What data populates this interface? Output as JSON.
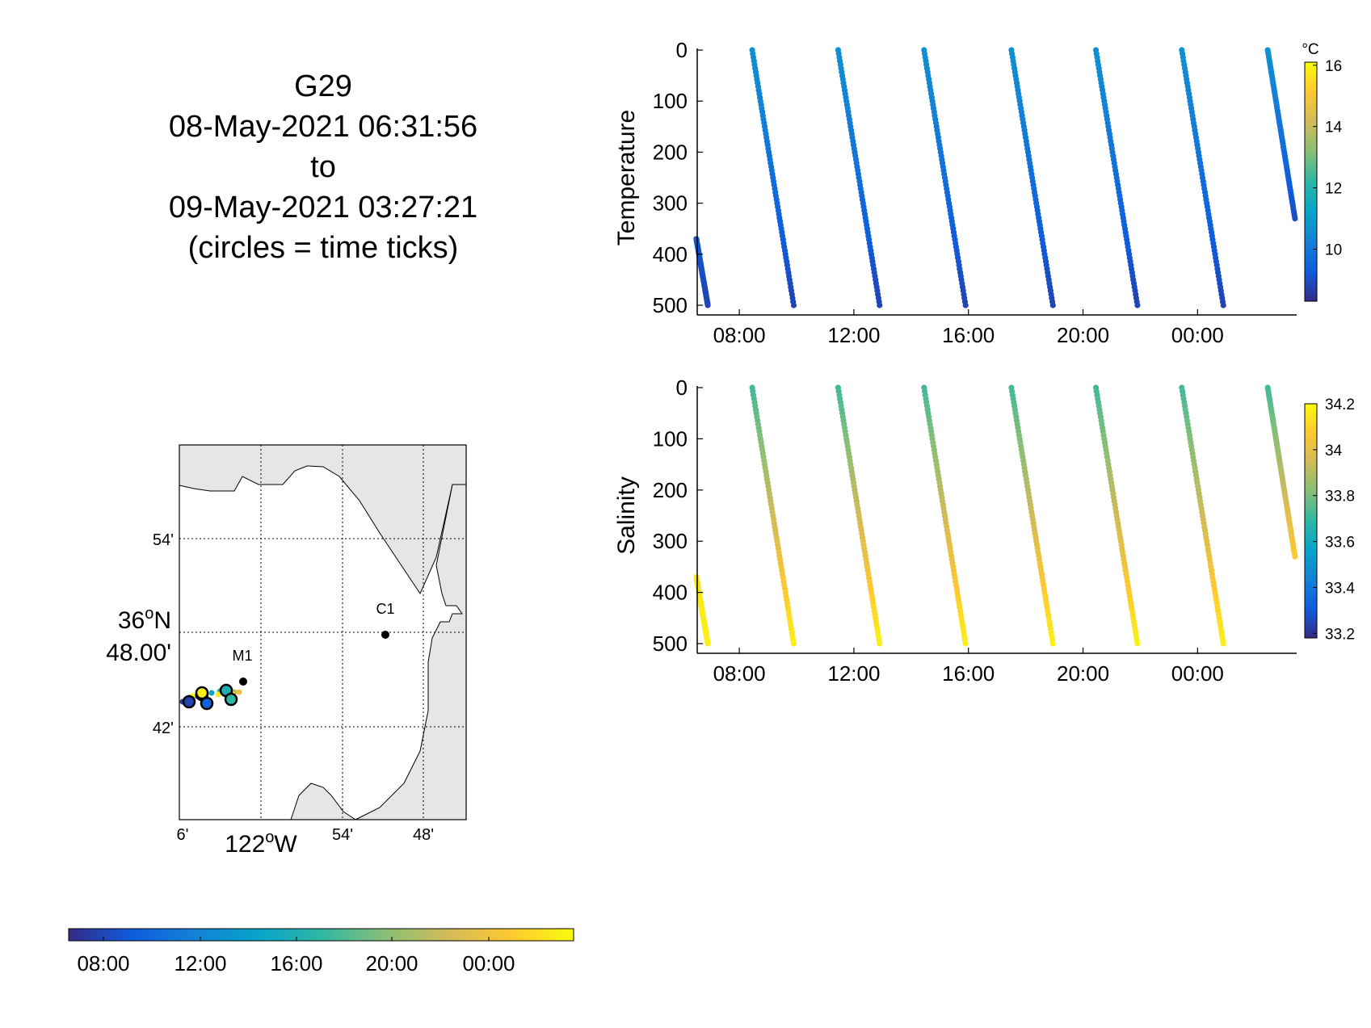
{
  "title": {
    "line1": "G29",
    "line2": "08-May-2021 06:31:56",
    "line3": "to",
    "line4": "09-May-2021 03:27:21",
    "line5": "(circles = time ticks)"
  },
  "time_axis_ticks": [
    "08:00",
    "12:00",
    "16:00",
    "20:00",
    "00:00"
  ],
  "colors": {
    "parula": [
      "#352a87",
      "#0f5cdd",
      "#1481d6",
      "#06a4ca",
      "#2eb7a4",
      "#87bf77",
      "#d1bb59",
      "#fec832",
      "#f9fb0e"
    ],
    "land": "#e6e6e6",
    "coast": "#000000"
  },
  "chart_data": [
    {
      "id": "temperature",
      "type": "scatter",
      "ylabel": "Temperature",
      "ylim": [
        0,
        500
      ],
      "y_reversed": true,
      "yticks": [
        0,
        100,
        200,
        300,
        400,
        500
      ],
      "x_range_hours": [
        6.53,
        27.46
      ],
      "x_tick_hours": [
        8,
        12,
        16,
        20,
        24
      ],
      "x_tick_labels": [
        "08:00",
        "12:00",
        "16:00",
        "20:00",
        "00:00"
      ],
      "colorbar": {
        "unit": "°C",
        "ticks": [
          "16",
          "14",
          "12",
          "10"
        ],
        "tick_values": [
          16,
          14,
          12,
          10
        ],
        "clim": [
          8.3,
          16.1
        ]
      },
      "segments": [
        {
          "t0": 6.5,
          "t1": 6.9,
          "d0": 370,
          "d1": 500,
          "v0": 9.2,
          "v1": 8.8
        },
        {
          "t0": 8.45,
          "t1": 9.9,
          "d0": 0,
          "d1": 500,
          "v0": 10.7,
          "v1": 8.8
        },
        {
          "t0": 11.45,
          "t1": 12.9,
          "d0": 0,
          "d1": 500,
          "v0": 10.7,
          "v1": 8.8
        },
        {
          "t0": 14.45,
          "t1": 15.9,
          "d0": 0,
          "d1": 500,
          "v0": 10.7,
          "v1": 8.8
        },
        {
          "t0": 17.5,
          "t1": 18.95,
          "d0": 0,
          "d1": 500,
          "v0": 10.7,
          "v1": 8.8
        },
        {
          "t0": 20.45,
          "t1": 21.9,
          "d0": 0,
          "d1": 500,
          "v0": 10.7,
          "v1": 8.8
        },
        {
          "t0": 23.45,
          "t1": 24.9,
          "d0": 0,
          "d1": 500,
          "v0": 10.7,
          "v1": 8.8
        },
        {
          "t0": 26.45,
          "t1": 27.4,
          "d0": 0,
          "d1": 330,
          "v0": 10.7,
          "v1": 9.0
        }
      ]
    },
    {
      "id": "salinity",
      "type": "scatter",
      "ylabel": "Salinity",
      "ylim": [
        0,
        500
      ],
      "y_reversed": true,
      "yticks": [
        0,
        100,
        200,
        300,
        400,
        500
      ],
      "x_range_hours": [
        6.53,
        27.46
      ],
      "x_tick_hours": [
        8,
        12,
        16,
        20,
        24
      ],
      "x_tick_labels": [
        "08:00",
        "12:00",
        "16:00",
        "20:00",
        "00:00"
      ],
      "colorbar": {
        "unit": "",
        "ticks": [
          "34.2",
          "34",
          "33.8",
          "33.6",
          "33.4",
          "33.2"
        ],
        "tick_values": [
          34.2,
          34.0,
          33.8,
          33.6,
          33.4,
          33.2
        ],
        "clim": [
          33.18,
          34.2
        ]
      },
      "segments": [
        {
          "t0": 6.5,
          "t1": 6.9,
          "d0": 370,
          "d1": 500,
          "v0": 34.15,
          "v1": 34.17
        },
        {
          "t0": 8.45,
          "t1": 9.9,
          "d0": 0,
          "d1": 500,
          "v0": 33.72,
          "v1": 34.17
        },
        {
          "t0": 11.45,
          "t1": 12.9,
          "d0": 0,
          "d1": 500,
          "v0": 33.72,
          "v1": 34.17
        },
        {
          "t0": 14.45,
          "t1": 15.9,
          "d0": 0,
          "d1": 500,
          "v0": 33.72,
          "v1": 34.17
        },
        {
          "t0": 17.5,
          "t1": 18.95,
          "d0": 0,
          "d1": 500,
          "v0": 33.72,
          "v1": 34.17
        },
        {
          "t0": 20.45,
          "t1": 21.9,
          "d0": 0,
          "d1": 500,
          "v0": 33.72,
          "v1": 34.17
        },
        {
          "t0": 23.45,
          "t1": 24.9,
          "d0": 0,
          "d1": 500,
          "v0": 33.72,
          "v1": 34.17
        },
        {
          "t0": 26.45,
          "t1": 27.4,
          "d0": 0,
          "d1": 330,
          "v0": 33.72,
          "v1": 34.07
        }
      ]
    }
  ],
  "map": {
    "lat_labels": {
      "top": "54'",
      "bottom": "42'",
      "center_deg": "36",
      "center_dir": "N",
      "center_min": "48.00'"
    },
    "lon_labels": {
      "left": "6'",
      "center_deg": "122",
      "center_dir": "W",
      "mid": "54'",
      "right": "48'"
    },
    "degree_symbol": "o",
    "moorings": [
      {
        "name": "M1"
      },
      {
        "name": "C1"
      }
    ],
    "time_colorbar_labels": [
      "08:00",
      "12:00",
      "16:00",
      "20:00",
      "00:00"
    ]
  }
}
